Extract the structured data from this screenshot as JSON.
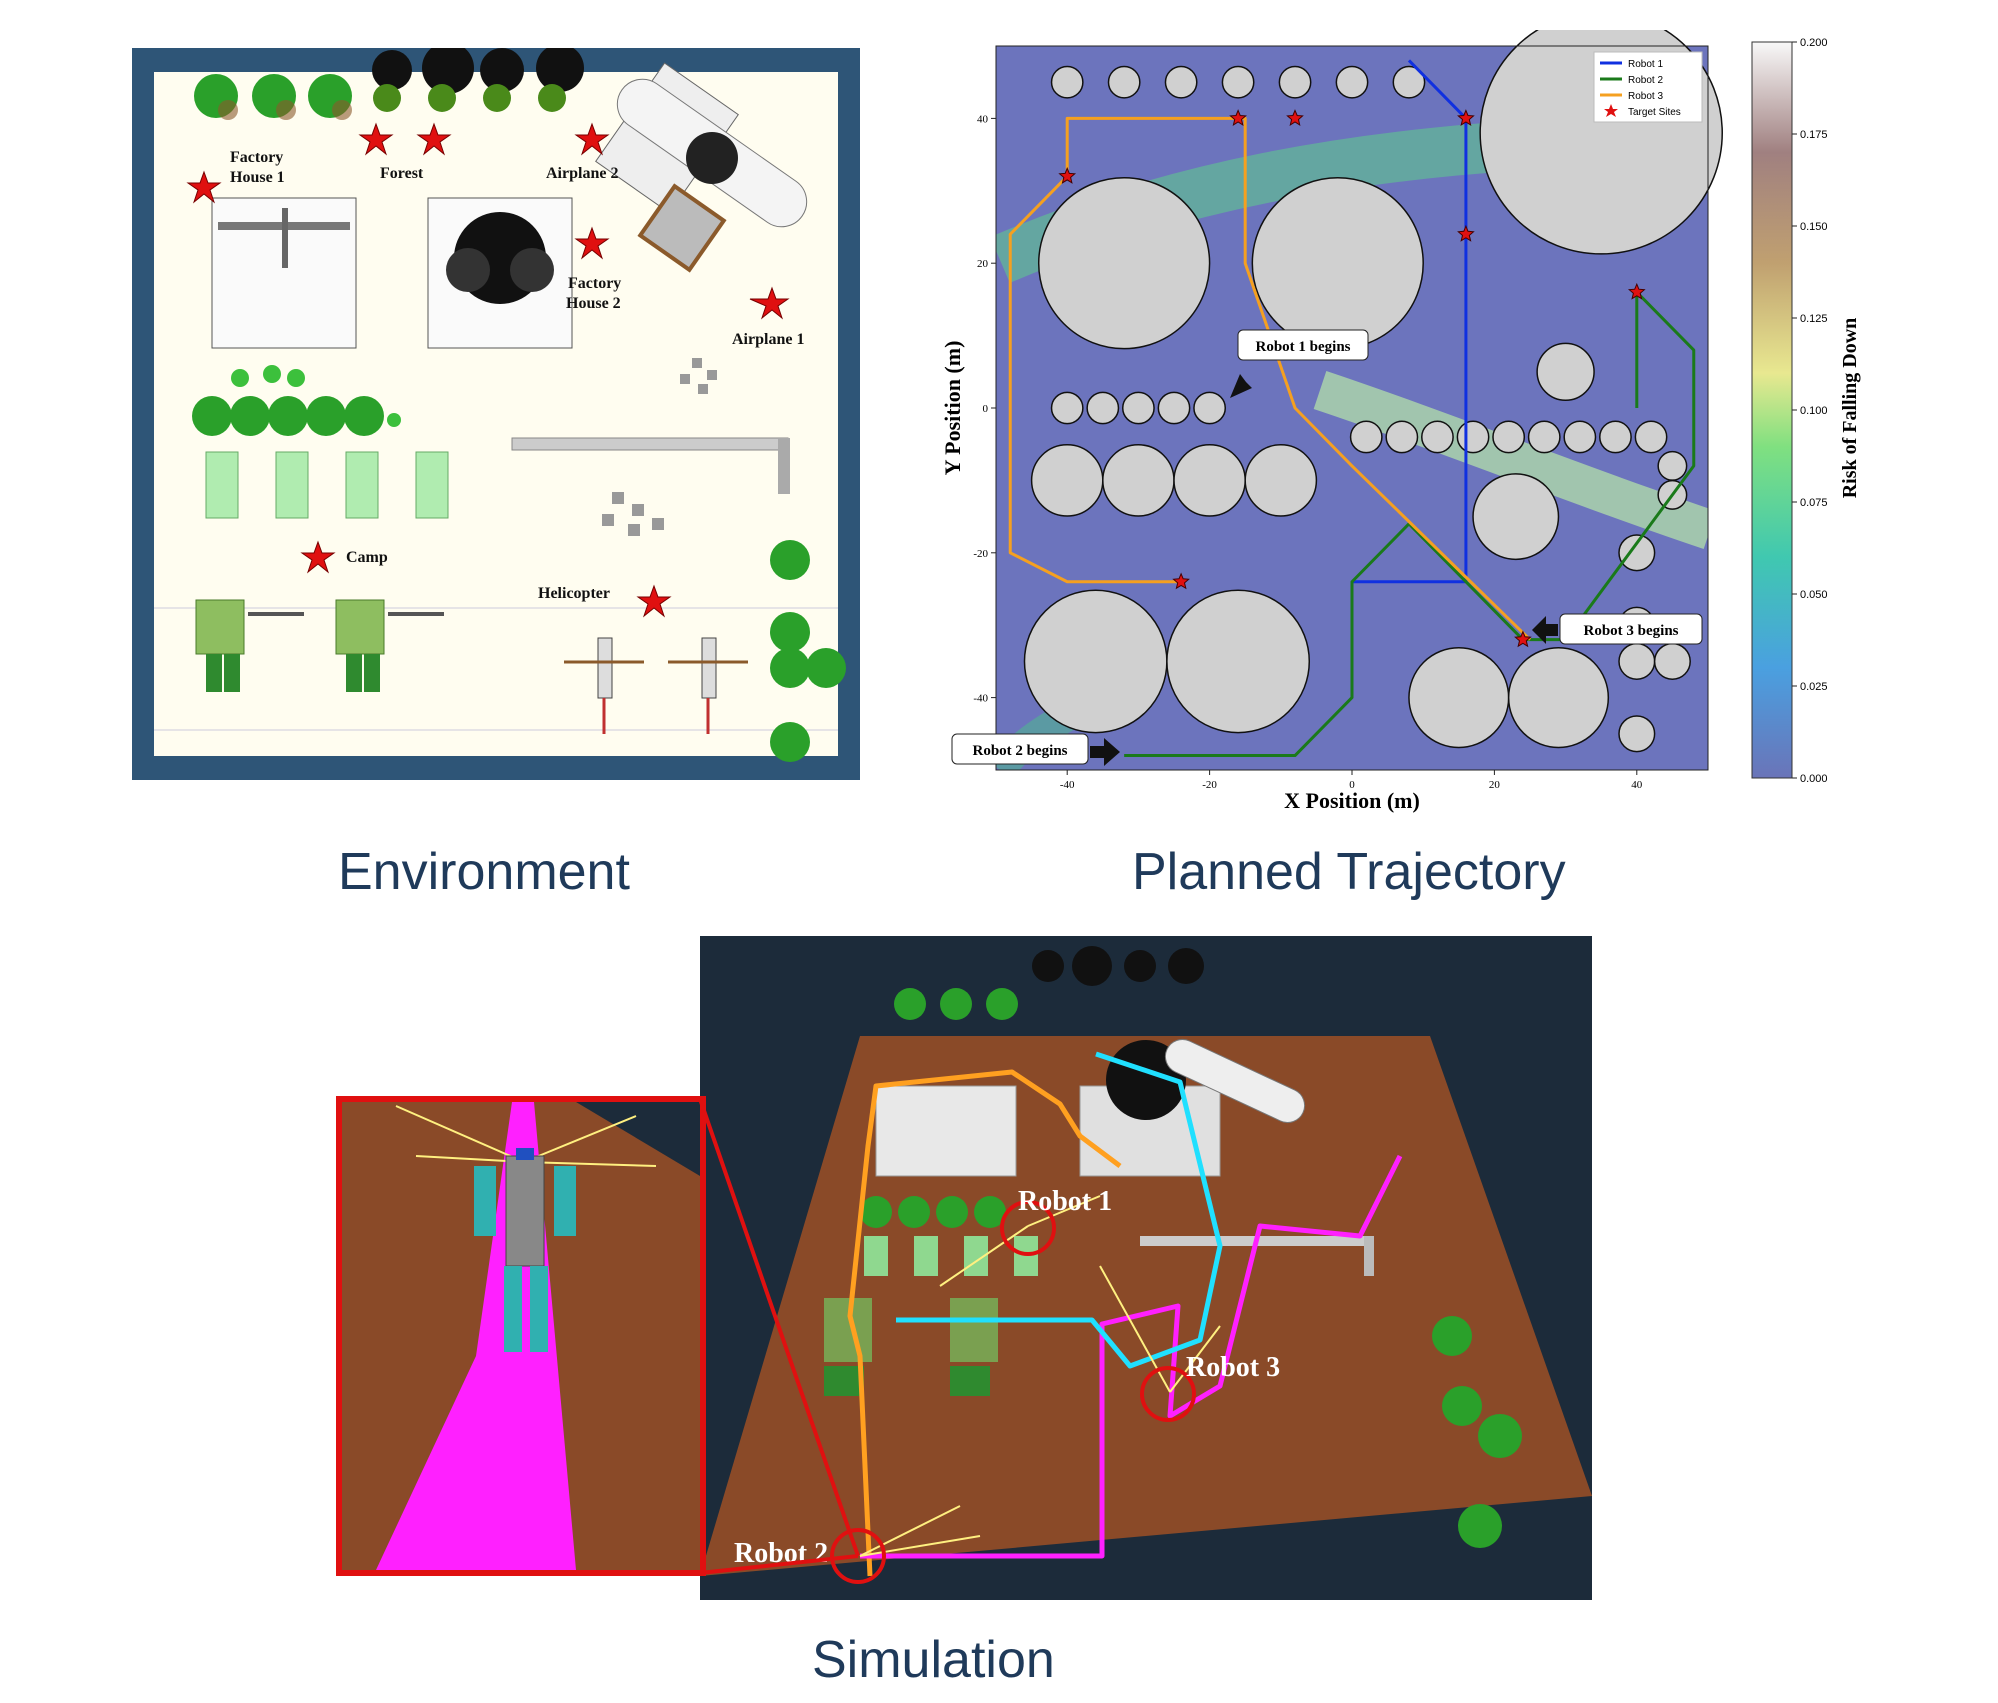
{
  "titles": {
    "environment": "Environment",
    "planned_trajectory": "Planned Trajectory",
    "simulation": "Simulation"
  },
  "environment_labels": {
    "factory_house_1": [
      "Factory",
      "House 1"
    ],
    "forest": "Forest",
    "airplane_2": "Airplane 2",
    "factory_house_2": [
      "Factory",
      "House 2"
    ],
    "airplane_1": "Airplane 1",
    "camp": "Camp",
    "helicopter": "Helicopter"
  },
  "simulation_labels": {
    "robot_1": "Robot 1",
    "robot_2": "Robot 2",
    "robot_3": "Robot 3"
  },
  "colors": {
    "robot_1": "#1030e0",
    "robot_2": "#1a7a1a",
    "robot_3": "#f5a020",
    "target": "#e01010",
    "title": "#1f3a5a",
    "sim_robot_1": "#ffa020",
    "sim_robot_2": "#ff20ff",
    "sim_robot_3": "#20e0ff"
  },
  "chart_data": {
    "type": "line",
    "xlabel": "X Position (m)",
    "ylabel": "Y Position (m)",
    "xlim": [
      -50,
      50
    ],
    "ylim": [
      -50,
      50
    ],
    "xticks": [
      -40,
      -20,
      0,
      20,
      40
    ],
    "yticks": [
      -40,
      -20,
      0,
      20,
      40
    ],
    "legend_position": "top-right",
    "legend": [
      "Robot 1",
      "Robot 2",
      "Robot 3",
      "Target Sites"
    ],
    "colorbar": {
      "label": "Risk of Falling Down",
      "range": [
        0.0,
        0.2
      ],
      "ticks": [
        "0.000",
        "0.025",
        "0.050",
        "0.075",
        "0.100",
        "0.125",
        "0.150",
        "0.175",
        "0.200"
      ]
    },
    "annotations": [
      {
        "text": "Robot 1 begins",
        "x": -8,
        "y": 0
      },
      {
        "text": "Robot 2 begins",
        "x": -32,
        "y": -48
      },
      {
        "text": "Robot 3 begins",
        "x": 25,
        "y": -32
      }
    ],
    "series": [
      {
        "name": "Robot 1",
        "x": [
          0,
          8,
          16,
          16,
          16,
          16,
          8
        ],
        "y": [
          -24,
          -24,
          -24,
          0,
          24,
          40,
          48
        ]
      },
      {
        "name": "Robot 2",
        "x": [
          -32,
          -8,
          0,
          0,
          8,
          24,
          30,
          48,
          48,
          40,
          40
        ],
        "y": [
          -48,
          -48,
          -40,
          -24,
          -16,
          -32,
          -32,
          -8,
          8,
          16,
          0
        ]
      },
      {
        "name": "Robot 3",
        "x": [
          25,
          0,
          -8,
          -15,
          -15,
          -40,
          -40,
          -48,
          -48,
          -40,
          -24
        ],
        "y": [
          -32,
          -8,
          0,
          20,
          40,
          40,
          32,
          24,
          -20,
          -24,
          -24
        ]
      }
    ],
    "target_sites": {
      "x": [
        -40,
        -16,
        -8,
        16,
        16,
        40,
        -24,
        24
      ],
      "y": [
        32,
        40,
        40,
        40,
        24,
        16,
        -24,
        -32
      ]
    }
  }
}
